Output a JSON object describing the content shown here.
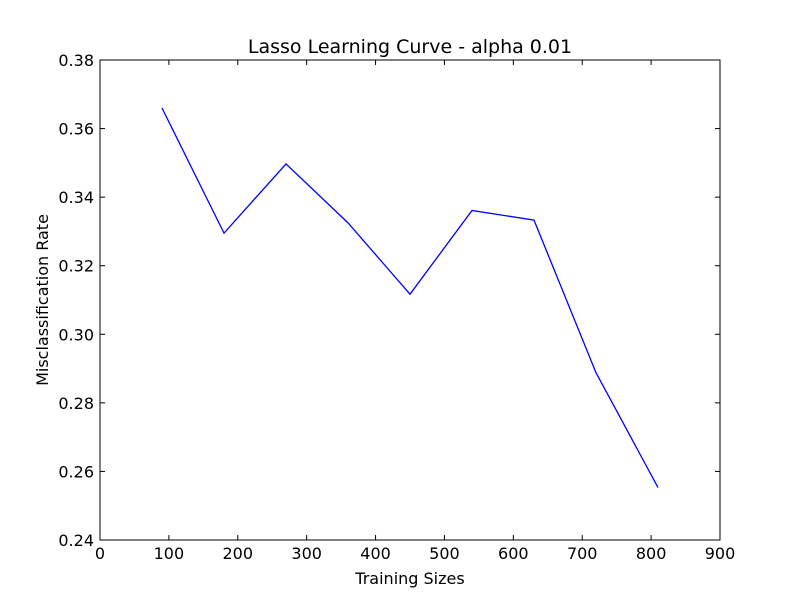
{
  "chart_data": {
    "type": "line",
    "title": "Lasso Learning Curve - alpha 0.01",
    "xlabel": "Training Sizes",
    "ylabel": "Misclassification Rate",
    "xlim": [
      0,
      900
    ],
    "ylim": [
      0.24,
      0.38
    ],
    "xticks": [
      0,
      100,
      200,
      300,
      400,
      500,
      600,
      700,
      800,
      900
    ],
    "xtick_labels": [
      "0",
      "100",
      "200",
      "300",
      "400",
      "500",
      "600",
      "700",
      "800",
      "900"
    ],
    "yticks": [
      0.24,
      0.26,
      0.28,
      0.3,
      0.32,
      0.34,
      0.36,
      0.38
    ],
    "ytick_labels": [
      "0.24",
      "0.26",
      "0.28",
      "0.30",
      "0.32",
      "0.34",
      "0.36",
      "0.38"
    ],
    "grid": false,
    "series": [
      {
        "color": "#0000ff",
        "x": [
          90,
          180,
          270,
          360,
          450,
          540,
          630,
          720,
          810
        ],
        "y": [
          0.366,
          0.3295,
          0.3497,
          0.3325,
          0.3117,
          0.3361,
          0.3333,
          0.2888,
          0.2553
        ]
      }
    ]
  }
}
